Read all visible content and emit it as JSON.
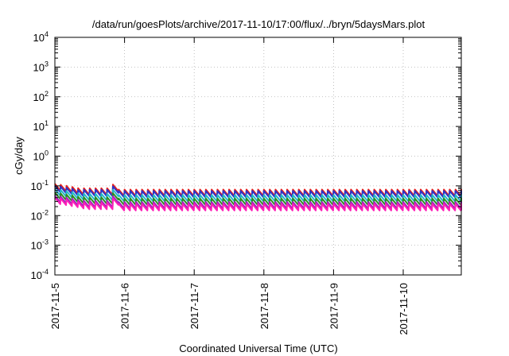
{
  "chart_data": {
    "type": "line",
    "title": "/data/run/goesPlots/archive/2017-11-10/17:00/flux/../bryn/5daysMars.plot",
    "xlabel": "Coordinated Universal Time (UTC)",
    "ylabel": "cGy/day",
    "yscale": "log",
    "ylim": [
      0.0001,
      10000
    ],
    "xlim": [
      "2017-11-05",
      "2017-11-10T20:00"
    ],
    "grid": true,
    "legend": "none",
    "y_ticks": [
      {
        "value": 0.0001,
        "mant": "10",
        "exp": "-4"
      },
      {
        "value": 0.001,
        "mant": "10",
        "exp": "-3"
      },
      {
        "value": 0.01,
        "mant": "10",
        "exp": "-2"
      },
      {
        "value": 0.1,
        "mant": "10",
        "exp": "-1"
      },
      {
        "value": 1,
        "mant": "10",
        "exp": "0"
      },
      {
        "value": 10,
        "mant": "10",
        "exp": "1"
      },
      {
        "value": 100,
        "mant": "10",
        "exp": "2"
      },
      {
        "value": 1000,
        "mant": "10",
        "exp": "3"
      },
      {
        "value": 10000,
        "mant": "10",
        "exp": "4"
      }
    ],
    "x_ticks": [
      "2017-11-5",
      "2017-11-6",
      "2017-11-7",
      "2017-11-8",
      "2017-11-9",
      "2017-11-10"
    ],
    "series": [
      {
        "color": "#e8201c",
        "base": 0.058,
        "early": 0.09
      },
      {
        "color": "#2d34c8",
        "base": 0.052,
        "early": 0.078
      },
      {
        "color": "#22b8c8",
        "base": 0.038,
        "early": 0.06
      },
      {
        "color": "#2c8c22",
        "base": 0.029,
        "early": 0.046
      },
      {
        "color": "#a020c0",
        "base": 0.022,
        "early": 0.036
      },
      {
        "color": "#ff20b8",
        "base": 0.019,
        "early": 0.031
      }
    ]
  }
}
